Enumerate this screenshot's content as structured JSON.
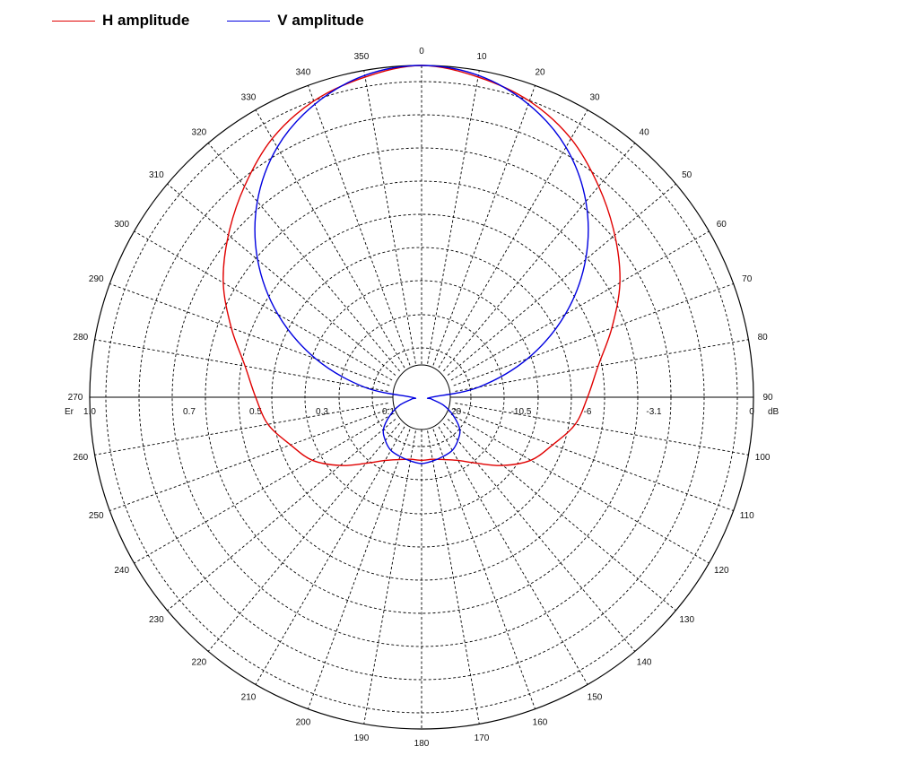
{
  "legend": [
    {
      "label": "H amplitude",
      "color": "#e00000"
    },
    {
      "label": "V amplitude",
      "color": "#0000e0"
    }
  ],
  "chart_data": {
    "type": "polar",
    "angle_labels": [
      "0",
      "10",
      "20",
      "30",
      "40",
      "50",
      "60",
      "70",
      "80",
      "90",
      "100",
      "110",
      "120",
      "130",
      "140",
      "150",
      "160",
      "170",
      "180",
      "190",
      "200",
      "210",
      "220",
      "230",
      "240",
      "250",
      "260",
      "270",
      "280",
      "290",
      "300",
      "310",
      "320",
      "330",
      "340",
      "350"
    ],
    "angle_step_deg": 10,
    "direction": "clockwise",
    "zero_at": "top",
    "radial_lin_labels": [
      "1.0",
      "0.7",
      "0.5",
      "0.3",
      "0.1"
    ],
    "radial_db_labels": [
      "-20",
      "-10.5",
      "-6",
      "-3.1",
      "0"
    ],
    "left_axis_label": "Er",
    "right_axis_label": "dB",
    "grid": true,
    "legend_position": "top-left",
    "series": [
      {
        "name": "H amplitude",
        "color": "#e00000",
        "theta_deg": [
          0,
          10,
          20,
          30,
          40,
          50,
          60,
          70,
          80,
          90,
          100,
          110,
          120,
          130,
          140,
          150,
          160,
          170,
          180,
          190,
          200,
          210,
          220,
          230,
          240,
          250,
          260,
          270,
          280,
          290,
          300,
          310,
          320,
          330,
          340,
          350
        ],
        "r": [
          1.0,
          0.98,
          0.95,
          0.9,
          0.83,
          0.76,
          0.69,
          0.61,
          0.54,
          0.5,
          0.47,
          0.42,
          0.38,
          0.32,
          0.26,
          0.22,
          0.2,
          0.19,
          0.19,
          0.19,
          0.2,
          0.22,
          0.26,
          0.32,
          0.38,
          0.42,
          0.47,
          0.5,
          0.54,
          0.61,
          0.69,
          0.76,
          0.83,
          0.9,
          0.95,
          0.98
        ]
      },
      {
        "name": "V amplitude",
        "color": "#0000e0",
        "theta_deg": [
          0,
          10,
          20,
          30,
          40,
          50,
          60,
          70,
          80,
          90,
          100,
          110,
          120,
          130,
          140,
          150,
          160,
          170,
          180,
          190,
          200,
          210,
          220,
          230,
          240,
          250,
          260,
          270,
          280,
          290,
          300,
          310,
          320,
          330,
          340,
          350
        ],
        "r": [
          1.0,
          0.985,
          0.94,
          0.87,
          0.77,
          0.645,
          0.5,
          0.34,
          0.175,
          0.03,
          0.03,
          0.07,
          0.11,
          0.15,
          0.17,
          0.185,
          0.19,
          0.195,
          0.2,
          0.195,
          0.19,
          0.185,
          0.17,
          0.15,
          0.11,
          0.07,
          0.03,
          0.03,
          0.175,
          0.34,
          0.5,
          0.645,
          0.77,
          0.87,
          0.94,
          0.985
        ]
      }
    ]
  }
}
